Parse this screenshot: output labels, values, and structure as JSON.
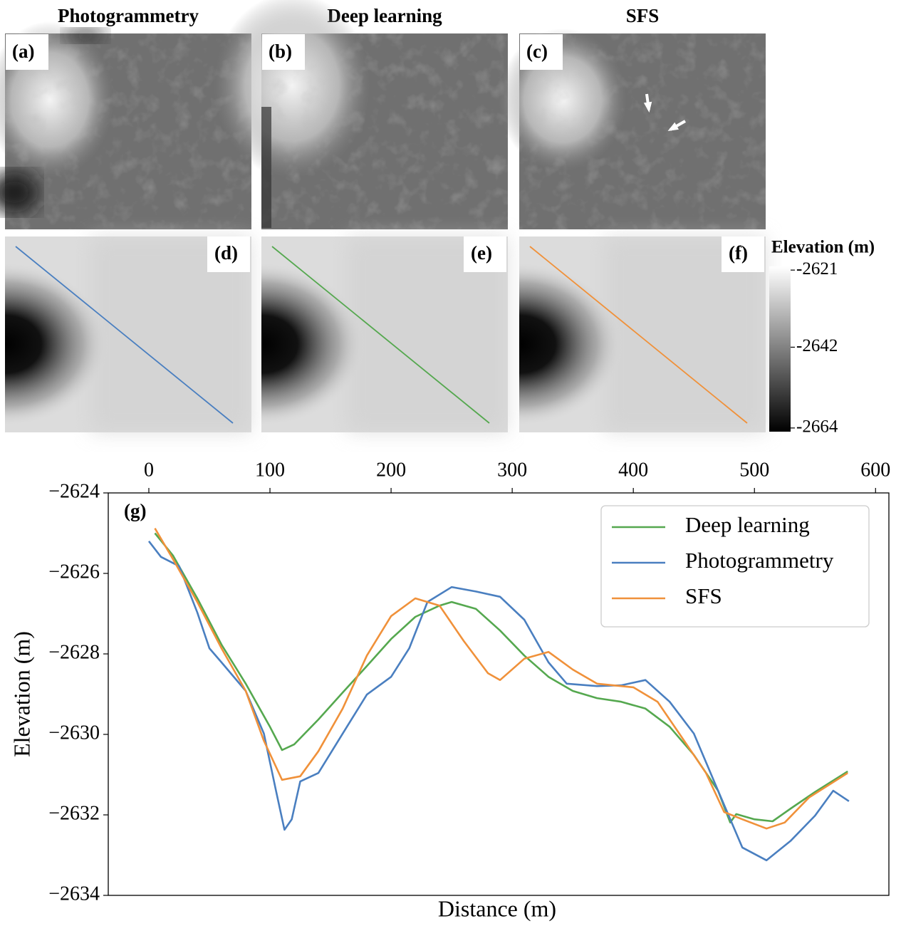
{
  "panels": [
    {
      "column_title": "Photogrammetry",
      "shaded_label": "(a)",
      "elevation_label": "(d)"
    },
    {
      "column_title": "Deep learning",
      "shaded_label": "(b)",
      "elevation_label": "(e)"
    },
    {
      "column_title": "SFS",
      "shaded_label": "(c)",
      "elevation_label": "(f)"
    }
  ],
  "colorbar": {
    "title": "Elevation (m)",
    "lim": [
      -2665,
      -2620
    ],
    "ticks": [
      -2621,
      -2642,
      -2664
    ]
  },
  "chart_data": {
    "type": "line",
    "annotation": "(g)",
    "xlabel": "Distance (m)",
    "ylabel": "Elevation (m)",
    "xlim": [
      -33.5,
      611
    ],
    "ylim": [
      -2634,
      -2624
    ],
    "xticks": [
      0,
      100,
      200,
      300,
      400,
      500,
      600
    ],
    "yticks": [
      {
        "value": -2624,
        "label": "−2624"
      },
      {
        "value": -2626,
        "label": "−2626"
      },
      {
        "value": -2628,
        "label": "−2628"
      },
      {
        "value": -2630,
        "label": "−2630"
      },
      {
        "value": -2632,
        "label": "−2632"
      },
      {
        "value": -2634,
        "label": "−2634"
      }
    ],
    "legend": "upper right",
    "series": [
      {
        "name": "Deep learning",
        "color": "#55a84f",
        "x": [
          5,
          20,
          40,
          60,
          80,
          100,
          110,
          120,
          140,
          160,
          180,
          200,
          220,
          240,
          250,
          270,
          290,
          310,
          330,
          350,
          370,
          390,
          410,
          430,
          450,
          470,
          480,
          485,
          500,
          515,
          530,
          550,
          577
        ],
        "values": [
          -2625.0,
          -2625.56,
          -2626.62,
          -2627.77,
          -2628.74,
          -2629.81,
          -2630.39,
          -2630.25,
          -2629.63,
          -2628.96,
          -2628.3,
          -2627.63,
          -2627.08,
          -2626.8,
          -2626.71,
          -2626.88,
          -2627.42,
          -2628.04,
          -2628.57,
          -2628.92,
          -2629.1,
          -2629.19,
          -2629.36,
          -2629.81,
          -2630.51,
          -2631.4,
          -2632.19,
          -2631.98,
          -2632.11,
          -2632.16,
          -2631.84,
          -2631.43,
          -2630.92
        ]
      },
      {
        "name": "Photogrammetry",
        "color": "#4a7fc0",
        "x": [
          0,
          10,
          25,
          40,
          50,
          60,
          80,
          95,
          105,
          112,
          118,
          125,
          140,
          160,
          180,
          200,
          215,
          230,
          250,
          270,
          290,
          310,
          330,
          345,
          370,
          390,
          410,
          430,
          450,
          470,
          490,
          510,
          530,
          550,
          565,
          578
        ],
        "values": [
          -2625.2,
          -2625.59,
          -2625.82,
          -2626.97,
          -2627.86,
          -2628.21,
          -2628.92,
          -2629.98,
          -2631.4,
          -2632.37,
          -2632.11,
          -2631.17,
          -2630.96,
          -2629.98,
          -2629.01,
          -2628.57,
          -2627.86,
          -2626.71,
          -2626.34,
          -2626.45,
          -2626.58,
          -2627.15,
          -2628.21,
          -2628.74,
          -2628.8,
          -2628.78,
          -2628.65,
          -2629.19,
          -2629.98,
          -2631.4,
          -2632.81,
          -2633.13,
          -2632.64,
          -2632.02,
          -2631.4,
          -2631.66
        ]
      },
      {
        "name": "SFS",
        "color": "#f0913a",
        "x": [
          5,
          20,
          40,
          60,
          80,
          95,
          110,
          125,
          140,
          160,
          180,
          200,
          220,
          240,
          260,
          280,
          290,
          310,
          330,
          350,
          370,
          400,
          420,
          440,
          460,
          475,
          490,
          510,
          525,
          545,
          577
        ],
        "values": [
          -2624.88,
          -2625.65,
          -2626.71,
          -2627.86,
          -2628.92,
          -2630.16,
          -2631.13,
          -2631.04,
          -2630.42,
          -2629.36,
          -2628.04,
          -2627.06,
          -2626.62,
          -2626.8,
          -2627.68,
          -2628.48,
          -2628.65,
          -2628.12,
          -2627.95,
          -2628.39,
          -2628.74,
          -2628.83,
          -2629.19,
          -2630.07,
          -2630.96,
          -2631.93,
          -2632.11,
          -2632.34,
          -2632.19,
          -2631.57,
          -2630.96
        ]
      }
    ]
  }
}
